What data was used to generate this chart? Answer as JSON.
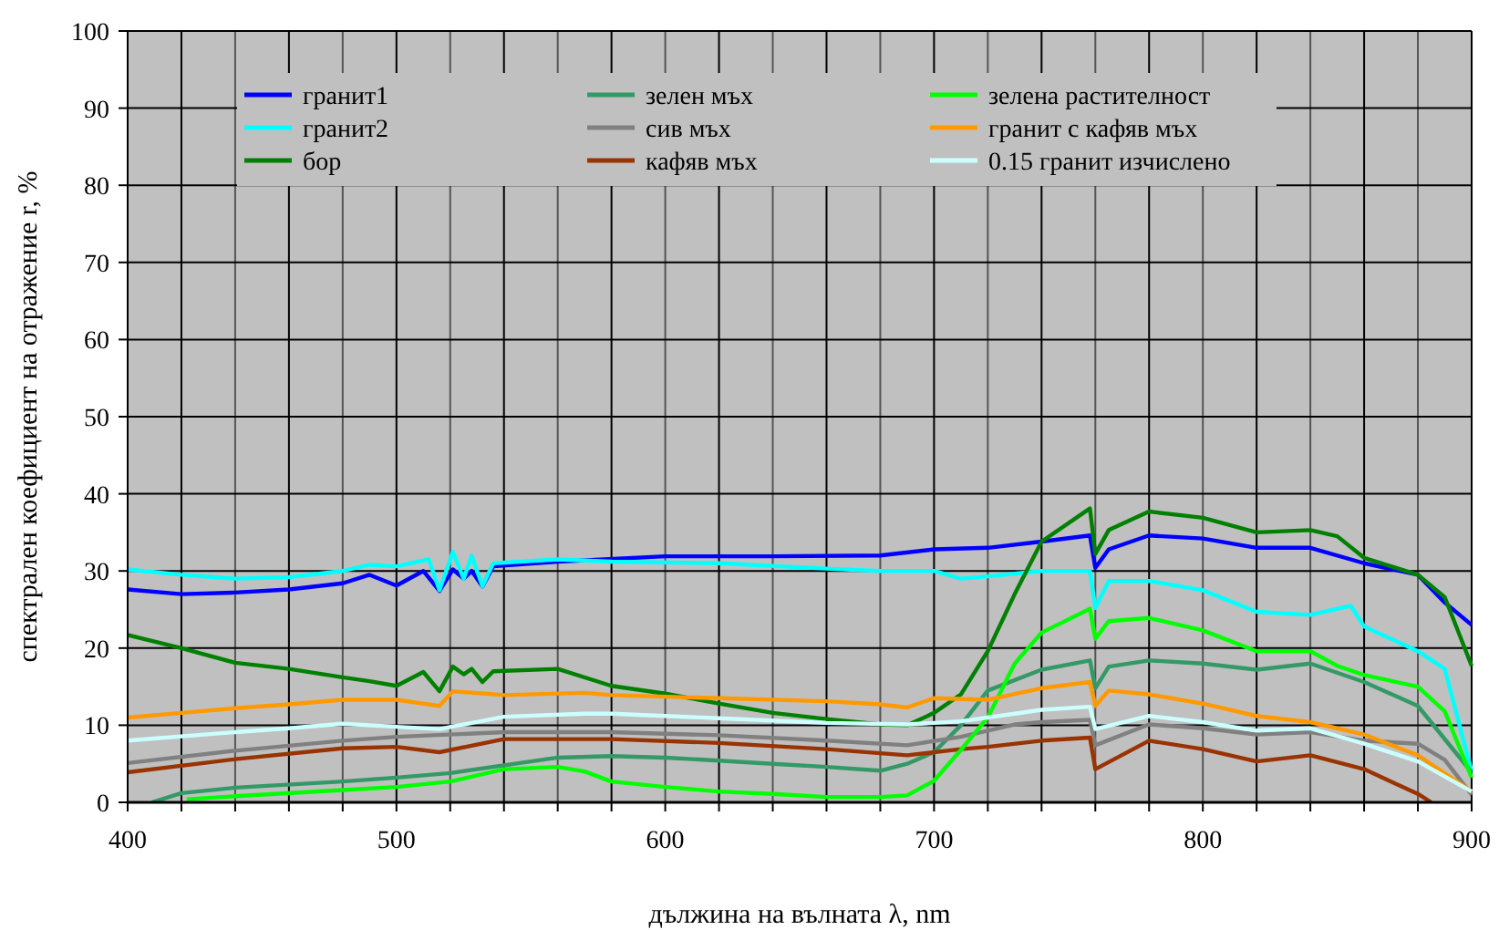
{
  "chart_data": {
    "type": "line",
    "xlabel": "дължина на вълната λ, nm",
    "ylabel": "спектрален коефициент на отражение r, %",
    "xlim": [
      400,
      900
    ],
    "ylim": [
      0,
      100
    ],
    "xticks": [
      400,
      {
        "value": 420,
        "label": null
      },
      {
        "value": 440,
        "label": null
      },
      {
        "value": 460,
        "label": null
      },
      {
        "value": 480,
        "label": null
      },
      500,
      {
        "value": 520,
        "label": null
      },
      {
        "value": 540,
        "label": null
      },
      {
        "value": 560,
        "label": null
      },
      {
        "value": 580,
        "label": null
      },
      600,
      {
        "value": 620,
        "label": null
      },
      {
        "value": 640,
        "label": null
      },
      {
        "value": 660,
        "label": null
      },
      {
        "value": 680,
        "label": null
      },
      700,
      {
        "value": 720,
        "label": null
      },
      {
        "value": 740,
        "label": null
      },
      {
        "value": 760,
        "label": null
      },
      {
        "value": 780,
        "label": null
      },
      800,
      {
        "value": 820,
        "label": null
      },
      {
        "value": 840,
        "label": null
      },
      {
        "value": 860,
        "label": null
      },
      {
        "value": 880,
        "label": null
      },
      900
    ],
    "yticks": [
      0,
      10,
      20,
      30,
      40,
      50,
      60,
      70,
      80,
      90,
      100
    ],
    "grid": true,
    "legend": "top",
    "marker": "none",
    "line_style": "solid",
    "series": [
      {
        "name": "гранит1",
        "color": "#0000ff",
        "x": [
          400,
          420,
          440,
          460,
          480,
          490,
          500,
          510,
          516,
          521,
          525,
          528,
          532,
          536,
          560,
          600,
          640,
          680,
          700,
          720,
          740,
          758,
          760,
          765,
          780,
          800,
          820,
          840,
          860,
          880,
          890,
          900
        ],
        "values": [
          27.6,
          27,
          27.2,
          27.6,
          28.4,
          29.5,
          28.1,
          30,
          27.4,
          30.2,
          29,
          30,
          28,
          30.6,
          31.2,
          31.9,
          31.9,
          32,
          32.8,
          33,
          33.8,
          34.6,
          30.4,
          32.8,
          34.6,
          34.2,
          33,
          33,
          31,
          29.5,
          25.9,
          23
        ]
      },
      {
        "name": "гранит2",
        "color": "#00ffff",
        "x": [
          400,
          420,
          440,
          460,
          480,
          490,
          500,
          512,
          516,
          521,
          525,
          528,
          532,
          536,
          560,
          580,
          620,
          660,
          680,
          700,
          710,
          720,
          740,
          758,
          760,
          765,
          780,
          800,
          820,
          840,
          855,
          860,
          880,
          890,
          900
        ],
        "values": [
          30.2,
          29.5,
          29,
          29.2,
          30,
          30.8,
          30.6,
          31.5,
          27.5,
          32.5,
          29,
          32,
          28,
          31,
          31.5,
          31.2,
          31,
          30.3,
          30,
          30,
          29,
          29.3,
          30,
          30,
          25.2,
          28.7,
          28.7,
          27.5,
          24.7,
          24.3,
          25.5,
          22.8,
          19.6,
          17.3,
          4
        ]
      },
      {
        "name": "бор",
        "color": "#008000",
        "x": [
          400,
          420,
          440,
          460,
          480,
          490,
          500,
          510,
          516,
          521,
          525,
          528,
          532,
          536,
          560,
          580,
          600,
          620,
          640,
          660,
          680,
          690,
          700,
          710,
          720,
          730,
          740,
          758,
          760,
          765,
          780,
          800,
          820,
          840,
          850,
          860,
          880,
          890,
          900
        ],
        "values": [
          21.7,
          20,
          18.1,
          17.3,
          16.2,
          15.7,
          15.1,
          16.9,
          14.4,
          17.6,
          16.6,
          17.3,
          15.6,
          17,
          17.3,
          15.1,
          14.1,
          12.8,
          11.6,
          10.8,
          10.1,
          10,
          11.6,
          14,
          19.6,
          27,
          33.8,
          38.1,
          32.2,
          35.3,
          37.7,
          36.9,
          35,
          35.3,
          34.5,
          31.7,
          29.5,
          26.6,
          17.7
        ]
      },
      {
        "name": "зелен мъх",
        "color": "#339966",
        "x": [
          409,
          420,
          440,
          480,
          500,
          520,
          540,
          560,
          580,
          600,
          620,
          640,
          660,
          680,
          690,
          700,
          710,
          720,
          740,
          758,
          760,
          765,
          780,
          800,
          820,
          840,
          860,
          880,
          900
        ],
        "values": [
          0,
          1.2,
          1.9,
          2.7,
          3.2,
          3.8,
          4.8,
          5.8,
          6,
          5.8,
          5.4,
          5,
          4.6,
          4.1,
          5,
          6.5,
          10,
          14.5,
          17.2,
          18.4,
          14.8,
          17.6,
          18.4,
          18,
          17.2,
          18,
          15.6,
          12.5,
          3.9
        ]
      },
      {
        "name": "сив мъх",
        "color": "#808080",
        "x": [
          400,
          440,
          480,
          500,
          540,
          580,
          620,
          660,
          690,
          710,
          730,
          740,
          758,
          760,
          780,
          800,
          820,
          840,
          860,
          880,
          890,
          900
        ],
        "values": [
          5.1,
          6.7,
          8,
          8.5,
          9.1,
          9.1,
          8.7,
          8,
          7.4,
          8.5,
          10.1,
          10.4,
          10.7,
          7.4,
          10.1,
          9.6,
          8.8,
          9.1,
          8,
          7.6,
          5.5,
          1
        ]
      },
      {
        "name": "кафяв мъх",
        "color": "#993300",
        "x": [
          400,
          440,
          480,
          500,
          516,
          540,
          580,
          620,
          660,
          690,
          710,
          720,
          740,
          758,
          760,
          780,
          800,
          820,
          840,
          860,
          870,
          880,
          885
        ],
        "values": [
          3.9,
          5.6,
          7,
          7.2,
          6.5,
          8.2,
          8.2,
          7.7,
          6.9,
          6.1,
          6.9,
          7.2,
          8,
          8.4,
          4.3,
          8,
          6.9,
          5.3,
          6.1,
          4.3,
          2.7,
          1.1,
          0
        ]
      },
      {
        "name": "зелена растителност",
        "color": "#00ff00",
        "x": [
          422,
          440,
          480,
          500,
          520,
          540,
          560,
          570,
          580,
          600,
          620,
          640,
          660,
          680,
          690,
          700,
          710,
          720,
          730,
          740,
          758,
          760,
          765,
          780,
          800,
          820,
          840,
          850,
          860,
          880,
          890,
          900
        ],
        "values": [
          0.4,
          0.8,
          1.6,
          2,
          2.7,
          4.3,
          4.6,
          4,
          2.7,
          2,
          1.4,
          1.1,
          0.7,
          0.7,
          0.9,
          2.8,
          6.8,
          11,
          18,
          22,
          25.1,
          21.2,
          23.5,
          23.9,
          22.3,
          19.6,
          19.6,
          17.7,
          16.5,
          15,
          11.8,
          3.2
        ]
      },
      {
        "name": "гранит с кафяв мъх",
        "color": "#ff9900",
        "x": [
          400,
          420,
          440,
          460,
          480,
          500,
          516,
          521,
          540,
          570,
          580,
          620,
          660,
          680,
          690,
          700,
          720,
          740,
          758,
          760,
          765,
          780,
          800,
          820,
          840,
          860,
          880,
          900
        ],
        "values": [
          11,
          11.6,
          12.2,
          12.7,
          13.3,
          13.3,
          12.5,
          14.4,
          13.9,
          14.2,
          13.9,
          13.5,
          13.1,
          12.7,
          12.3,
          13.5,
          13.3,
          14.8,
          15.6,
          12.5,
          14.5,
          14,
          12.8,
          11.2,
          10.4,
          8.8,
          6.1,
          1.4
        ]
      },
      {
        "name": "0.15 гранит изчислено",
        "color": "#ccffff",
        "x": [
          400,
          440,
          460,
          480,
          500,
          516,
          540,
          570,
          580,
          620,
          660,
          690,
          710,
          730,
          740,
          758,
          760,
          780,
          800,
          820,
          840,
          860,
          880,
          900
        ],
        "values": [
          8,
          9.1,
          9.6,
          10.2,
          9.8,
          9.5,
          11.1,
          11.5,
          11.5,
          10.9,
          10.3,
          10.1,
          10.5,
          11.5,
          12,
          12.4,
          9.5,
          11.2,
          10.4,
          9.3,
          9.6,
          7.6,
          5.3,
          1.4
        ]
      }
    ]
  }
}
